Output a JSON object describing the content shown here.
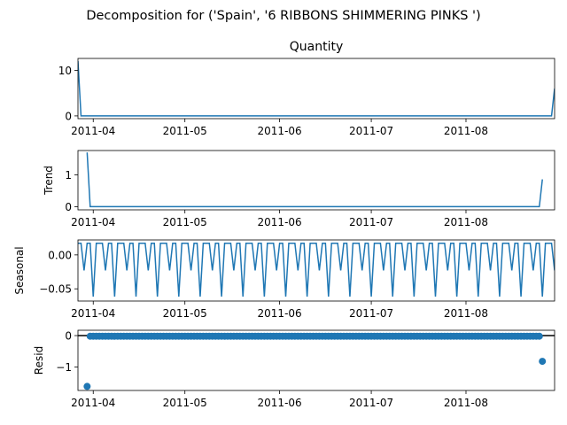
{
  "suptitle": "Decomposition for ('Spain', '6 RIBBONS SHIMMERING PINKS ')",
  "colors": {
    "series": "#1f77b4",
    "axes": "#000000",
    "background": "#ffffff"
  },
  "chart_data": [
    {
      "type": "line",
      "title": "Quantity",
      "ylabel": "",
      "xlim": [
        "2011-03-27",
        "2011-08-30"
      ],
      "ylim": [
        -0.6,
        12.6
      ],
      "yticks": [
        0,
        10
      ],
      "yticklabels": [
        "0",
        "10"
      ],
      "xticks": [
        "2011-04-01",
        "2011-05-01",
        "2011-06-01",
        "2011-07-01",
        "2011-08-01"
      ],
      "xticklabels": [
        "2011-04",
        "2011-05",
        "2011-06",
        "2011-07",
        "2011-08"
      ],
      "series": [
        {
          "x": [
            "2011-03-27",
            "2011-03-28",
            "2011-08-29",
            "2011-08-30"
          ],
          "y": [
            12,
            0,
            0,
            6
          ]
        }
      ]
    },
    {
      "type": "line",
      "title": "",
      "ylabel": "Trend",
      "xlim": [
        "2011-03-27",
        "2011-08-30"
      ],
      "ylim": [
        -0.1,
        1.77
      ],
      "yticks": [
        0,
        1
      ],
      "yticklabels": [
        "0",
        "1"
      ],
      "xticks": [
        "2011-04-01",
        "2011-05-01",
        "2011-06-01",
        "2011-07-01",
        "2011-08-01"
      ],
      "xticklabels": [
        "2011-04",
        "2011-05",
        "2011-06",
        "2011-07",
        "2011-08"
      ],
      "series": [
        {
          "x": [
            "2011-03-30",
            "2011-03-31",
            "2011-08-25",
            "2011-08-26"
          ],
          "y": [
            1.71,
            0,
            0,
            0.86
          ]
        }
      ]
    },
    {
      "type": "line",
      "title": "",
      "ylabel": "Seasonal",
      "xlim": [
        "2011-03-27",
        "2011-08-30"
      ],
      "ylim": [
        -0.068,
        0.022
      ],
      "yticks": [
        0.0,
        -0.05
      ],
      "yticklabels": [
        "0.00",
        "−0.05"
      ],
      "xticks": [
        "2011-04-01",
        "2011-05-01",
        "2011-06-01",
        "2011-07-01",
        "2011-08-01"
      ],
      "xticklabels": [
        "2011-04",
        "2011-05",
        "2011-06",
        "2011-07",
        "2011-08"
      ],
      "period": 7,
      "seasonal_pattern": [
        0.0171,
        0.0171,
        -0.0229,
        0.0171,
        0.0171,
        -0.0614,
        0.0171
      ],
      "series": [
        {
          "x_start": "2011-03-27",
          "x_end": "2011-08-30",
          "pattern": "seasonal_pattern"
        }
      ]
    },
    {
      "type": "scatter",
      "title": "",
      "ylabel": "Resid",
      "xlim": [
        "2011-03-27",
        "2011-08-30"
      ],
      "ylim": [
        -1.75,
        0.17
      ],
      "yticks": [
        0,
        -1
      ],
      "yticklabels": [
        "0",
        "−1"
      ],
      "xticks": [
        "2011-04-01",
        "2011-05-01",
        "2011-06-01",
        "2011-07-01",
        "2011-08-01"
      ],
      "xticklabels": [
        "2011-04",
        "2011-05",
        "2011-06",
        "2011-07",
        "2011-08"
      ],
      "hline": 0,
      "series": [
        {
          "points": [
            {
              "x": "2011-03-30",
              "y": -1.62
            },
            {
              "x": "2011-08-26",
              "y": -0.82
            }
          ],
          "zero_range": [
            "2011-03-31",
            "2011-08-25"
          ],
          "zero_value": -0.02
        }
      ]
    }
  ]
}
